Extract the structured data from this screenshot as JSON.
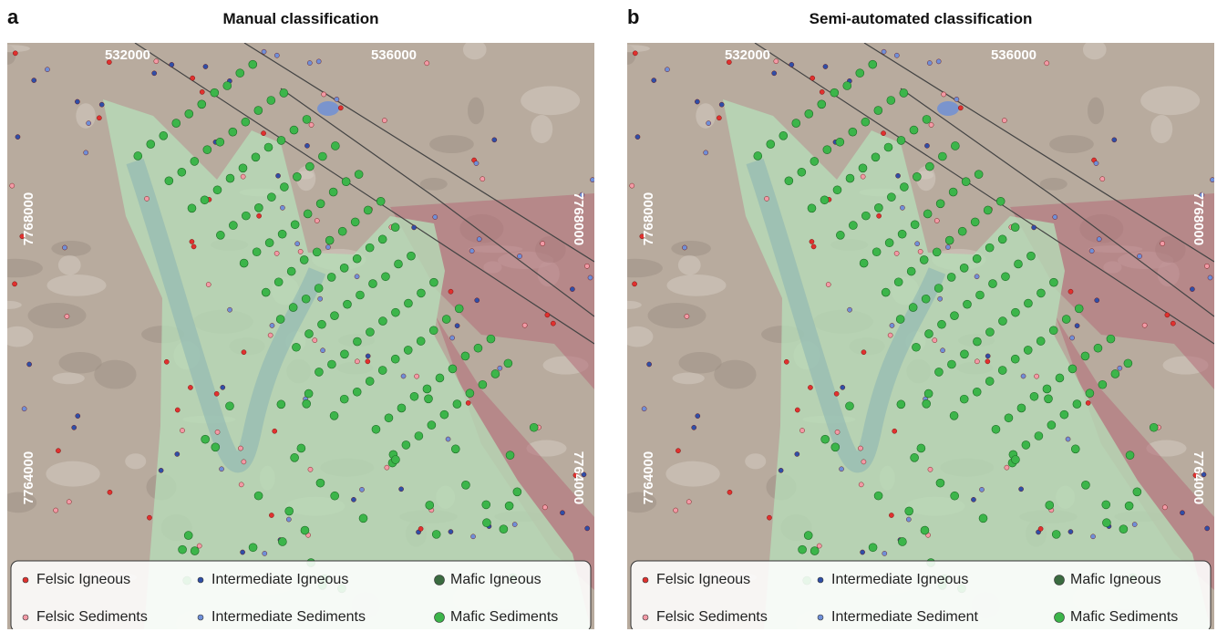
{
  "panels": [
    {
      "label": "a",
      "title": "Manual classification",
      "x_coords": [
        "532000",
        "536000"
      ],
      "y_coords": [
        "7768000",
        "7764000"
      ],
      "legend": [
        "Felsic Igneous",
        "Intermediate Igneous",
        "Mafic Igneous",
        "Felsic Sediments",
        "Intermediate Sediments",
        "Mafic Sediments"
      ]
    },
    {
      "label": "b",
      "title": "Semi-automated classification",
      "x_coords": [
        "532000",
        "536000"
      ],
      "y_coords": [
        "7768000",
        "7764000"
      ],
      "legend": [
        "Felsic Igneous",
        "Intermediate Igneous",
        "Mafic Igneous",
        "Felsic Sediments",
        "Intermediate Sediment",
        "Mafic Sediments"
      ]
    }
  ]
}
